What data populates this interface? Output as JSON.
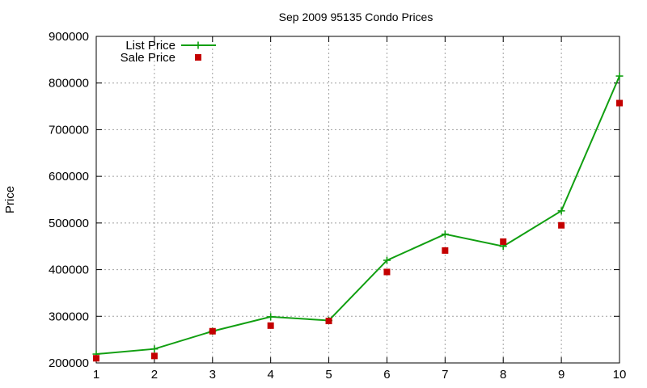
{
  "chart_data": {
    "type": "line",
    "title": "Sep 2009 95135 Condo Prices",
    "xlabel": "",
    "ylabel": "Price",
    "xlim": [
      1,
      10
    ],
    "ylim": [
      200000,
      900000
    ],
    "x_ticks": [
      "1",
      "2",
      "3",
      "4",
      "5",
      "6",
      "7",
      "8",
      "9",
      "10"
    ],
    "y_ticks": [
      "200000",
      "300000",
      "400000",
      "500000",
      "600000",
      "700000",
      "800000",
      "900000"
    ],
    "grid": true,
    "legend_position": "top-left",
    "series": [
      {
        "name": "List Price",
        "style": "line-with-plus-markers",
        "color": "#119f11",
        "x": [
          1,
          2,
          3,
          4,
          5,
          6,
          7,
          8,
          9,
          10
        ],
        "values": [
          219000,
          230000,
          268000,
          299000,
          291000,
          420000,
          476000,
          450000,
          526000,
          815000
        ]
      },
      {
        "name": "Sale Price",
        "style": "square-markers",
        "color": "#c40000",
        "x": [
          1,
          2,
          3,
          4,
          5,
          6,
          7,
          8,
          9,
          10
        ],
        "values": [
          210000,
          215000,
          268000,
          280000,
          290000,
          395000,
          441000,
          460000,
          495000,
          757000
        ]
      }
    ]
  }
}
